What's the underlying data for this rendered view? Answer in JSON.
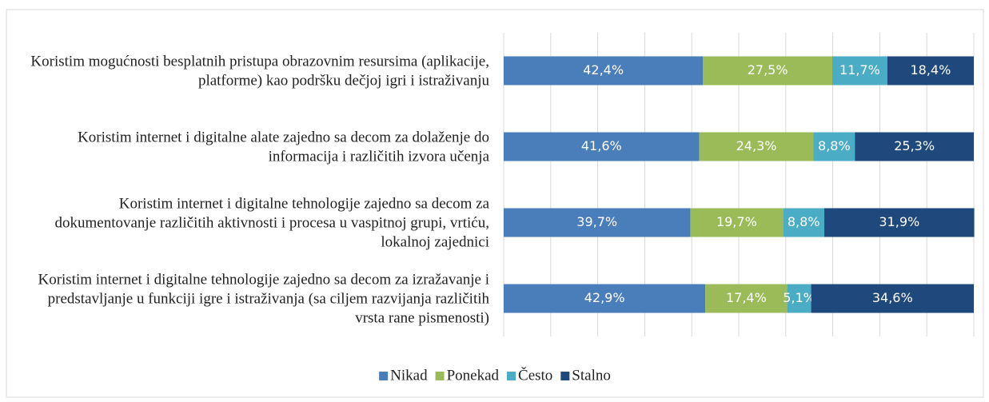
{
  "chart_data": {
    "type": "stacked-barh",
    "categories": [
      "Koristim mogućnosti besplatnih pristupa obrazovnim resursima (aplikacije, platforme) kao podršku dečjoj igri i istraživanju",
      "Koristim internet i digitalne alate zajedno sa decom za dolaženje do informacija i različitih izvora učenja",
      "Koristim internet i digitalne tehnologije zajedno sa decom za dokumentovanje različitih aktivnosti i procesa u vaspitnoj grupi, vrtiću, lokalnoj zajednici",
      "Koristim internet i digitalne tehnologije zajedno sa decom za izražavanje i predstavljanje u funkciji igre i istraživanja (sa ciljem razvijanja različitih vrsta rane pismenosti)"
    ],
    "series": [
      {
        "name": "Nikad",
        "color": "#4a7ebb",
        "values": [
          42.4,
          41.6,
          39.7,
          42.9
        ],
        "value_labels": [
          "42,4%",
          "41,6%",
          "39,7%",
          "42,9%"
        ]
      },
      {
        "name": "Ponekad",
        "color": "#9bbb59",
        "values": [
          27.5,
          24.3,
          19.7,
          17.4
        ],
        "value_labels": [
          "27,5%",
          "24,3%",
          "19,7%",
          "17,4%"
        ]
      },
      {
        "name": "Često",
        "color": "#4bacc6",
        "values": [
          11.7,
          8.8,
          8.8,
          5.1
        ],
        "value_labels": [
          "11,7%",
          "8,8%",
          "8,8%",
          "5,1%"
        ]
      },
      {
        "name": "Stalno",
        "color": "#1f497d",
        "values": [
          18.4,
          25.3,
          31.9,
          34.6
        ],
        "value_labels": [
          "18,4%",
          "25,3%",
          "31,9%",
          "34,6%"
        ]
      }
    ],
    "xlim": [
      0,
      100
    ],
    "xticks": [
      0,
      10,
      20,
      30,
      40,
      50,
      60,
      70,
      80,
      90,
      100
    ],
    "grid": true,
    "legend": "bottom"
  }
}
